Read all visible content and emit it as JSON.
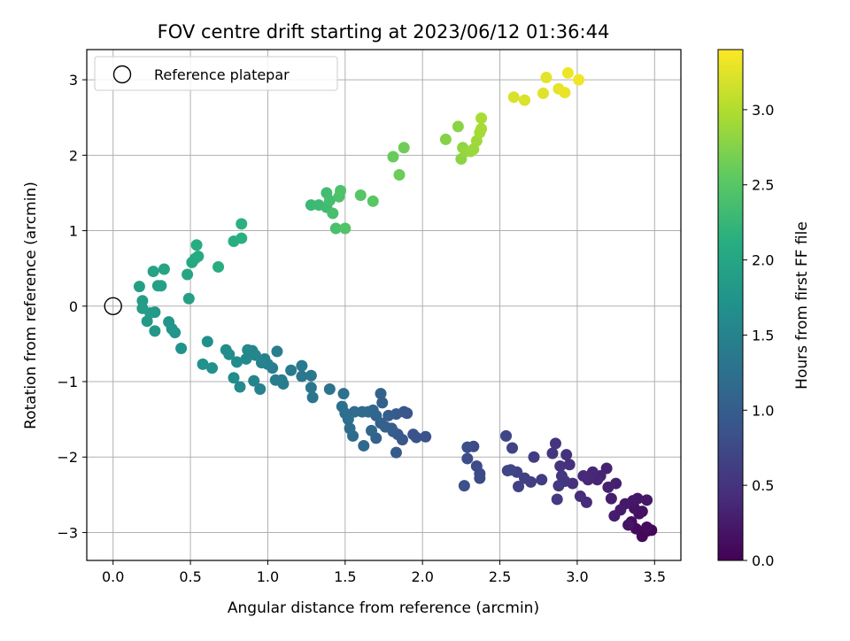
{
  "chart_data": {
    "type": "scatter",
    "title": "FOV centre drift starting at 2023/06/12 01:36:44",
    "xlabel": "Angular distance from reference (arcmin)",
    "ylabel": "Rotation from reference (arcmin)",
    "xlim": [
      -0.17,
      3.67
    ],
    "ylim": [
      -3.37,
      3.4
    ],
    "xticks": [
      0.0,
      0.5,
      1.0,
      1.5,
      2.0,
      2.5,
      3.0,
      3.5
    ],
    "xtick_labels": [
      "0.0",
      "0.5",
      "1.0",
      "1.5",
      "2.0",
      "2.5",
      "3.0",
      "3.5"
    ],
    "yticks": [
      -3,
      -2,
      -1,
      0,
      1,
      2,
      3
    ],
    "ytick_labels": [
      "−3",
      "−2",
      "−1",
      "0",
      "1",
      "2",
      "3"
    ],
    "grid": true,
    "colormap": "viridis",
    "colorbar": {
      "label": "Hours from first FF file",
      "range": [
        0.0,
        3.4
      ],
      "ticks": [
        0.0,
        0.5,
        1.0,
        1.5,
        2.0,
        2.5,
        3.0
      ],
      "tick_labels": [
        "0.0",
        "0.5",
        "1.0",
        "1.5",
        "2.0",
        "2.5",
        "3.0"
      ]
    },
    "legend": {
      "placement": "top-left",
      "entries": [
        {
          "label": "Reference platepar",
          "marker": "open-circle"
        }
      ]
    },
    "reference_point": {
      "x": 0.0,
      "y": 0.0
    },
    "points": [
      [
        3.45,
        -2.98,
        0.05
      ],
      [
        3.48,
        -2.97,
        0.06
      ],
      [
        3.42,
        -3.05,
        0.07
      ],
      [
        3.38,
        -2.95,
        0.09
      ],
      [
        3.45,
        -2.93,
        0.1
      ],
      [
        3.35,
        -2.86,
        0.12
      ],
      [
        3.4,
        -2.75,
        0.14
      ],
      [
        3.42,
        -2.72,
        0.15
      ],
      [
        3.37,
        -2.68,
        0.17
      ],
      [
        3.33,
        -2.9,
        0.18
      ],
      [
        3.36,
        -2.58,
        0.2
      ],
      [
        3.39,
        -2.55,
        0.21
      ],
      [
        3.45,
        -2.57,
        0.22
      ],
      [
        3.31,
        -2.62,
        0.24
      ],
      [
        3.28,
        -2.7,
        0.25
      ],
      [
        3.24,
        -2.78,
        0.27
      ],
      [
        3.22,
        -2.55,
        0.28
      ],
      [
        3.25,
        -2.35,
        0.3
      ],
      [
        3.2,
        -2.4,
        0.31
      ],
      [
        3.19,
        -2.15,
        0.33
      ],
      [
        3.15,
        -2.25,
        0.34
      ],
      [
        3.13,
        -2.3,
        0.36
      ],
      [
        3.1,
        -2.2,
        0.37
      ],
      [
        3.07,
        -2.3,
        0.39
      ],
      [
        3.04,
        -2.25,
        0.4
      ],
      [
        3.06,
        -2.6,
        0.42
      ],
      [
        3.02,
        -2.52,
        0.43
      ],
      [
        2.97,
        -2.35,
        0.45
      ],
      [
        2.95,
        -2.1,
        0.46
      ],
      [
        2.93,
        -1.97,
        0.48
      ],
      [
        2.89,
        -2.12,
        0.49
      ],
      [
        2.86,
        -1.82,
        0.51
      ],
      [
        2.84,
        -1.95,
        0.52
      ],
      [
        2.9,
        -2.25,
        0.54
      ],
      [
        2.92,
        -2.32,
        0.55
      ],
      [
        2.88,
        -2.38,
        0.56
      ],
      [
        2.87,
        -2.56,
        0.58
      ],
      [
        2.77,
        -2.3,
        0.6
      ],
      [
        2.72,
        -2.0,
        0.61
      ],
      [
        2.7,
        -2.33,
        0.62
      ],
      [
        2.66,
        -2.28,
        0.64
      ],
      [
        2.62,
        -2.39,
        0.65
      ],
      [
        2.61,
        -2.2,
        0.67
      ],
      [
        2.58,
        -1.88,
        0.68
      ],
      [
        2.55,
        -2.18,
        0.7
      ],
      [
        2.54,
        -1.72,
        0.71
      ],
      [
        2.57,
        -2.17,
        0.72
      ],
      [
        2.37,
        -2.22,
        0.74
      ],
      [
        2.37,
        -2.28,
        0.75
      ],
      [
        2.35,
        -2.12,
        0.77
      ],
      [
        2.33,
        -1.86,
        0.78
      ],
      [
        2.29,
        -2.02,
        0.8
      ],
      [
        2.29,
        -1.87,
        0.81
      ],
      [
        2.27,
        -2.38,
        0.83
      ],
      [
        2.02,
        -1.73,
        0.85
      ],
      [
        1.96,
        -1.74,
        0.87
      ],
      [
        1.94,
        -1.7,
        0.88
      ],
      [
        1.9,
        -1.42,
        0.9
      ],
      [
        1.87,
        -1.77,
        0.91
      ],
      [
        1.88,
        -1.4,
        0.92
      ],
      [
        1.84,
        -1.7,
        0.94
      ],
      [
        1.83,
        -1.43,
        0.95
      ],
      [
        1.81,
        -1.66,
        0.97
      ],
      [
        1.83,
        -1.94,
        0.98
      ],
      [
        1.8,
        -1.62,
        1.0
      ],
      [
        1.78,
        -1.45,
        1.01
      ],
      [
        1.76,
        -1.6,
        1.02
      ],
      [
        1.74,
        -1.28,
        1.04
      ],
      [
        1.73,
        -1.55,
        1.05
      ],
      [
        1.73,
        -1.16,
        1.07
      ],
      [
        1.7,
        -1.75,
        1.08
      ],
      [
        1.7,
        -1.45,
        1.1
      ],
      [
        1.68,
        -1.38,
        1.11
      ],
      [
        1.67,
        -1.65,
        1.12
      ],
      [
        1.65,
        -1.4,
        1.14
      ],
      [
        1.62,
        -1.85,
        1.15
      ],
      [
        1.61,
        -1.4,
        1.17
      ],
      [
        1.55,
        -1.72,
        1.18
      ],
      [
        1.56,
        -1.4,
        1.2
      ],
      [
        1.53,
        -1.62,
        1.21
      ],
      [
        1.52,
        -1.5,
        1.22
      ],
      [
        1.5,
        -1.42,
        1.24
      ],
      [
        1.48,
        -1.33,
        1.25
      ],
      [
        1.49,
        -1.16,
        1.27
      ],
      [
        1.4,
        -1.1,
        1.29
      ],
      [
        1.29,
        -1.21,
        1.31
      ],
      [
        1.28,
        -1.08,
        1.32
      ],
      [
        1.28,
        -0.92,
        1.34
      ],
      [
        1.22,
        -0.93,
        1.35
      ],
      [
        1.22,
        -0.79,
        1.37
      ],
      [
        1.15,
        -0.85,
        1.38
      ],
      [
        1.09,
        -0.98,
        1.4
      ],
      [
        1.1,
        -1.03,
        1.41
      ],
      [
        1.05,
        -0.98,
        1.43
      ],
      [
        1.06,
        -0.6,
        1.44
      ],
      [
        1.03,
        -0.82,
        1.45
      ],
      [
        1.0,
        -0.77,
        1.47
      ],
      [
        0.98,
        -0.7,
        1.48
      ],
      [
        0.96,
        -0.75,
        1.5
      ],
      [
        0.95,
        -1.1,
        1.51
      ],
      [
        0.91,
        -0.99,
        1.53
      ],
      [
        0.9,
        -0.59,
        1.54
      ],
      [
        0.92,
        -0.65,
        1.56
      ],
      [
        0.87,
        -0.58,
        1.57
      ],
      [
        0.86,
        -0.7,
        1.59
      ],
      [
        0.82,
        -1.07,
        1.6
      ],
      [
        0.8,
        -0.74,
        1.62
      ],
      [
        0.78,
        -0.95,
        1.63
      ],
      [
        0.75,
        -0.64,
        1.65
      ],
      [
        0.73,
        -0.58,
        1.66
      ],
      [
        0.64,
        -0.82,
        1.68
      ],
      [
        0.61,
        -0.47,
        1.69
      ],
      [
        0.58,
        -0.77,
        1.71
      ],
      [
        0.44,
        -0.56,
        1.73
      ],
      [
        0.4,
        -0.35,
        1.75
      ],
      [
        0.38,
        -0.3,
        1.77
      ],
      [
        0.36,
        -0.21,
        1.78
      ],
      [
        0.27,
        -0.33,
        1.8
      ],
      [
        0.27,
        -0.08,
        1.81
      ],
      [
        0.22,
        -0.2,
        1.83
      ],
      [
        0.24,
        -0.09,
        1.84
      ],
      [
        0.19,
        -0.03,
        1.86
      ],
      [
        0.19,
        0.07,
        1.88
      ],
      [
        0.17,
        0.26,
        1.9
      ],
      [
        0.49,
        0.1,
        1.92
      ],
      [
        0.31,
        0.27,
        1.94
      ],
      [
        0.29,
        0.27,
        1.95
      ],
      [
        0.26,
        0.46,
        1.97
      ],
      [
        0.33,
        0.49,
        1.98
      ],
      [
        0.48,
        0.42,
        2.0
      ],
      [
        0.51,
        0.58,
        2.02
      ],
      [
        0.53,
        0.63,
        2.04
      ],
      [
        0.55,
        0.66,
        2.06
      ],
      [
        0.54,
        0.81,
        2.08
      ],
      [
        0.68,
        0.52,
        2.1
      ],
      [
        0.78,
        0.86,
        2.12
      ],
      [
        0.83,
        0.9,
        2.14
      ],
      [
        0.83,
        1.09,
        2.16
      ],
      [
        1.28,
        1.34,
        2.28
      ],
      [
        1.33,
        1.34,
        2.3
      ],
      [
        1.38,
        1.31,
        2.32
      ],
      [
        1.38,
        1.5,
        2.34
      ],
      [
        1.4,
        1.4,
        2.36
      ],
      [
        1.42,
        1.23,
        2.38
      ],
      [
        1.44,
        1.03,
        2.4
      ],
      [
        1.46,
        1.45,
        2.42
      ],
      [
        1.47,
        1.53,
        2.44
      ],
      [
        1.5,
        1.03,
        2.46
      ],
      [
        1.6,
        1.47,
        2.49
      ],
      [
        1.68,
        1.39,
        2.51
      ],
      [
        1.81,
        1.98,
        2.6
      ],
      [
        1.85,
        1.74,
        2.62
      ],
      [
        1.88,
        2.1,
        2.64
      ],
      [
        2.15,
        2.21,
        2.76
      ],
      [
        2.23,
        2.38,
        2.78
      ],
      [
        2.25,
        1.95,
        2.8
      ],
      [
        2.26,
        2.1,
        2.82
      ],
      [
        2.28,
        2.05,
        2.84
      ],
      [
        2.31,
        2.05,
        2.86
      ],
      [
        2.33,
        2.08,
        2.88
      ],
      [
        2.35,
        2.19,
        2.9
      ],
      [
        2.37,
        2.3,
        2.92
      ],
      [
        2.38,
        2.35,
        2.94
      ],
      [
        2.38,
        2.49,
        2.96
      ],
      [
        2.59,
        2.77,
        3.2
      ],
      [
        2.66,
        2.73,
        3.22
      ],
      [
        2.78,
        2.82,
        3.24
      ],
      [
        2.8,
        3.03,
        3.26
      ],
      [
        2.88,
        2.88,
        3.28
      ],
      [
        2.92,
        2.83,
        3.3
      ],
      [
        2.94,
        3.09,
        3.32
      ],
      [
        3.01,
        3.0,
        3.34
      ]
    ]
  }
}
